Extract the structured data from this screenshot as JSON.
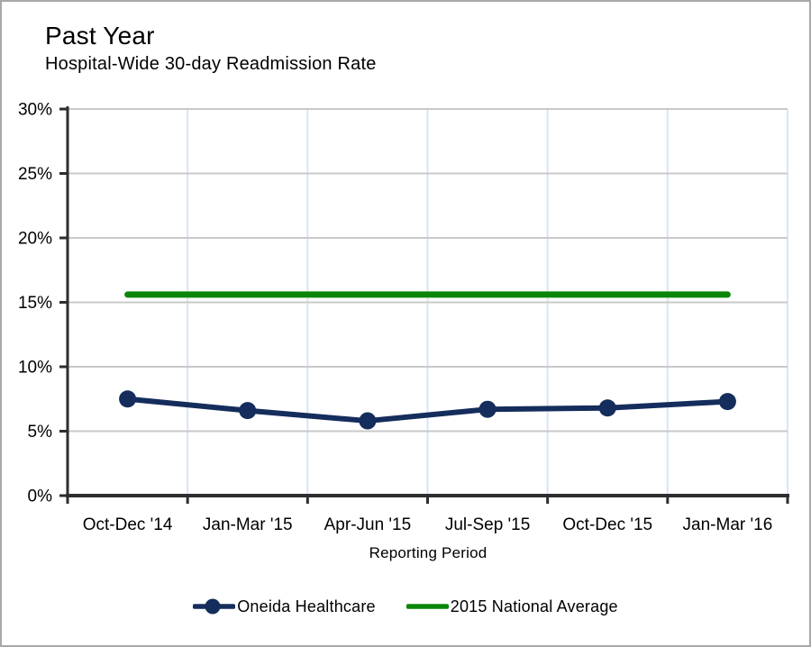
{
  "header": {
    "title": "Past Year",
    "subtitle": "Hospital-Wide 30-day Readmission Rate"
  },
  "chart_data": {
    "type": "line",
    "title": "Past Year",
    "subtitle": "Hospital-Wide 30-day Readmission Rate",
    "categories": [
      "Oct-Dec '14",
      "Jan-Mar '15",
      "Apr-Jun '15",
      "Jul-Sep '15",
      "Oct-Dec '15",
      "Jan-Mar '16"
    ],
    "series": [
      {
        "name": "Oneida Healthcare",
        "color": "#152D5C",
        "marker": "circle",
        "values": [
          7.5,
          6.6,
          5.8,
          6.7,
          6.8,
          7.3
        ]
      },
      {
        "name": "2015 National Average",
        "color": "#0A870A",
        "marker": "none",
        "values": [
          15.6,
          15.6,
          15.6,
          15.6,
          15.6,
          15.6
        ]
      }
    ],
    "xlabel": "Reporting Period",
    "ylabel": "",
    "ylim": [
      0,
      30
    ],
    "y_tick_step": 5,
    "y_tick_labels": [
      "0%",
      "5%",
      "10%",
      "15%",
      "20%",
      "25%",
      "30%"
    ],
    "grid": {
      "horizontal": true,
      "vertical": true
    },
    "legend_position": "bottom",
    "styles": {
      "axis_color": "#2e2e2e",
      "h_grid_color": "#c9c9c9",
      "v_grid_color": "#d9e5f5",
      "background": "#ffffff",
      "frame_border_color": "#a9a9a9",
      "text_color": "#000000"
    }
  }
}
